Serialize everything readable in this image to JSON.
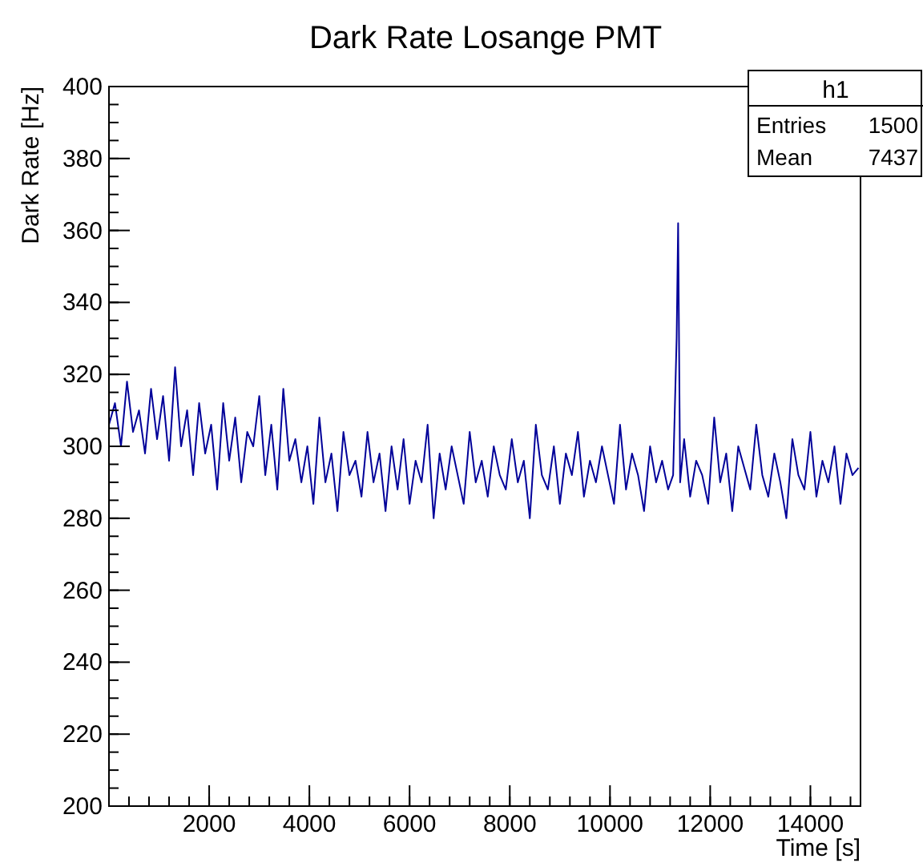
{
  "chart_data": {
    "type": "line",
    "title": "Dark Rate Losange PMT",
    "xlabel": "Time [s]",
    "ylabel": "Dark Rate [Hz]",
    "annotations": [
      "h1",
      "Entries",
      "1500",
      "Mean",
      "7437"
    ],
    "xlim": [
      0,
      15000
    ],
    "xticks": [
      2000,
      4000,
      6000,
      8000,
      10000,
      12000,
      14000
    ],
    "ylim": [
      200,
      400
    ],
    "yticks": [
      200,
      220,
      240,
      260,
      280,
      300,
      320,
      340,
      360,
      380,
      400
    ],
    "grid": false,
    "series": [
      {
        "color": "#000099",
        "x": [
          0,
          120,
          240,
          360,
          480,
          600,
          720,
          840,
          960,
          1080,
          1200,
          1320,
          1440,
          1560,
          1680,
          1800,
          1920,
          2040,
          2160,
          2280,
          2400,
          2520,
          2640,
          2760,
          2880,
          3000,
          3120,
          3240,
          3360,
          3480,
          3600,
          3720,
          3840,
          3960,
          4080,
          4200,
          4320,
          4440,
          4560,
          4680,
          4800,
          4920,
          5040,
          5160,
          5280,
          5400,
          5520,
          5640,
          5760,
          5880,
          6000,
          6120,
          6240,
          6360,
          6480,
          6600,
          6720,
          6840,
          6960,
          7080,
          7200,
          7320,
          7440,
          7560,
          7680,
          7800,
          7920,
          8040,
          8160,
          8280,
          8400,
          8520,
          8640,
          8760,
          8880,
          9000,
          9120,
          9240,
          9360,
          9480,
          9600,
          9720,
          9840,
          9960,
          10080,
          10200,
          10320,
          10440,
          10560,
          10680,
          10800,
          10920,
          11040,
          11160,
          11260,
          11330,
          11360,
          11400,
          11480,
          11600,
          11720,
          11840,
          11960,
          12080,
          12200,
          12320,
          12440,
          12560,
          12680,
          12800,
          12920,
          13040,
          13160,
          13280,
          13400,
          13520,
          13640,
          13760,
          13880,
          14000,
          14120,
          14240,
          14360,
          14480,
          14600,
          14720,
          14840,
          14960
        ],
        "values": [
          306,
          312,
          300,
          318,
          304,
          310,
          298,
          316,
          302,
          314,
          296,
          322,
          300,
          310,
          292,
          312,
          298,
          306,
          288,
          312,
          296,
          308,
          290,
          304,
          300,
          314,
          292,
          306,
          288,
          316,
          296,
          302,
          290,
          300,
          284,
          308,
          290,
          298,
          282,
          304,
          292,
          296,
          286,
          304,
          290,
          298,
          282,
          300,
          288,
          302,
          284,
          296,
          290,
          306,
          280,
          298,
          288,
          300,
          292,
          284,
          304,
          290,
          296,
          286,
          300,
          292,
          288,
          302,
          290,
          296,
          280,
          306,
          292,
          288,
          300,
          284,
          298,
          292,
          304,
          286,
          296,
          290,
          300,
          292,
          284,
          306,
          288,
          298,
          292,
          282,
          300,
          290,
          296,
          288,
          292,
          330,
          362,
          290,
          302,
          286,
          296,
          292,
          284,
          308,
          290,
          298,
          282,
          300,
          294,
          288,
          306,
          292,
          286,
          298,
          290,
          280,
          302,
          292,
          288,
          304,
          286,
          296,
          290,
          300,
          284,
          298,
          292,
          294
        ]
      }
    ]
  }
}
